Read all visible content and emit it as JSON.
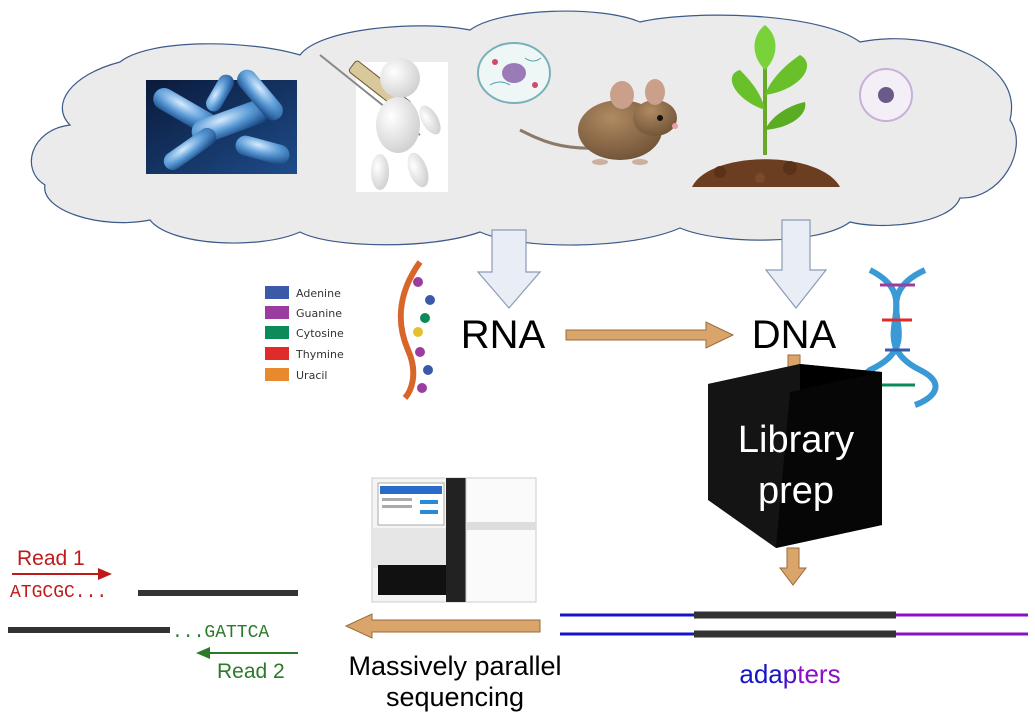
{
  "diagram": {
    "center": {
      "rna": "RNA",
      "dna": "DNA",
      "library_line1": "Library",
      "library_line2": "prep"
    },
    "legend": {
      "items": [
        {
          "label": "Adenine",
          "color": "#3a5aa8"
        },
        {
          "label": "Guanine",
          "color": "#9b3d9e"
        },
        {
          "label": "Cytosine",
          "color": "#0b8a5a"
        },
        {
          "label": "Thymine",
          "color": "#e02b2b"
        },
        {
          "label": "Uracil",
          "color": "#e8892e"
        }
      ]
    },
    "sequencing": {
      "line1": "Massively parallel",
      "line2": "sequencing"
    },
    "adapters": {
      "part1": "ada",
      "part2": "p",
      "part3": "ters",
      "color_blue": "#1515c8",
      "color_purple": "#8a10c8"
    },
    "reads": {
      "read1_label": "Read 1",
      "read1_seq": "ATGCGC...",
      "read2_label": "Read 2",
      "read2_seq": "...GATTCA",
      "read1_color": "#c0191a",
      "read2_color": "#2a7a2a"
    },
    "colors": {
      "cloud_fill": "#ebebeb",
      "cloud_stroke": "#3d5a8a",
      "arrow_fill": "#e9eef6",
      "arrow_stroke": "#8a9ab5",
      "flow_arrow": "#d9a56a",
      "flow_arrow_stroke": "#9a6a3a",
      "cube": "#141414"
    }
  }
}
